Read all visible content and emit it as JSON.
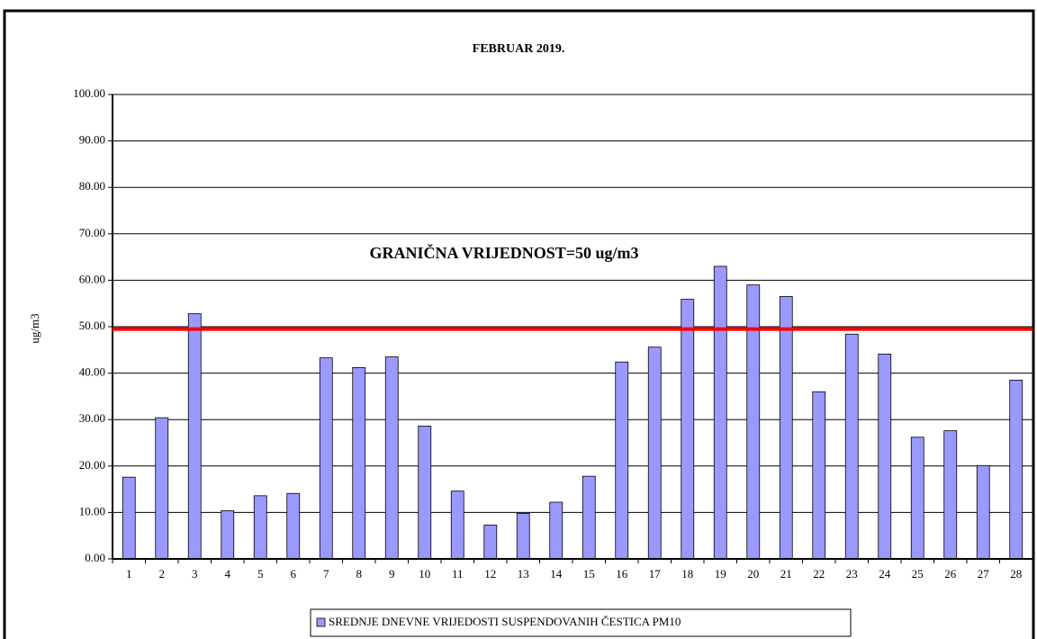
{
  "chart_data": {
    "type": "bar",
    "title": "FEBRUAR 2019.",
    "ylabel": "ug/m3",
    "categories": [
      "1",
      "2",
      "3",
      "4",
      "5",
      "6",
      "7",
      "8",
      "9",
      "10",
      "11",
      "12",
      "13",
      "14",
      "15",
      "16",
      "17",
      "18",
      "19",
      "20",
      "21",
      "22",
      "23",
      "24",
      "25",
      "26",
      "27",
      "28"
    ],
    "series": [
      {
        "name": "SREDNJE DNEVNE VRIJEDOSTI SUSPENDOVANIH ČESTICA PM10",
        "color": "#9999ff",
        "values": [
          17.6,
          30.4,
          52.8,
          10.4,
          13.6,
          14.1,
          43.3,
          41.2,
          43.5,
          28.6,
          14.6,
          7.3,
          9.8,
          12.2,
          17.8,
          42.4,
          45.6,
          55.9,
          63.0,
          59.0,
          56.5,
          36.0,
          48.4,
          44.1,
          26.2,
          27.6,
          20.1,
          38.5
        ]
      }
    ],
    "ylim": [
      0,
      100
    ],
    "yticks": [
      {
        "value": 0,
        "label": "0.00"
      },
      {
        "value": 10,
        "label": "10.00"
      },
      {
        "value": 20,
        "label": "20.00"
      },
      {
        "value": 30,
        "label": "30.00"
      },
      {
        "value": 40,
        "label": "40.00"
      },
      {
        "value": 50,
        "label": "50.00"
      },
      {
        "value": 60,
        "label": "60.00"
      },
      {
        "value": 70,
        "label": "70.00"
      },
      {
        "value": 80,
        "label": "80.00"
      },
      {
        "value": 90,
        "label": "90.00"
      },
      {
        "value": 100,
        "label": "100.00"
      }
    ],
    "grid": true,
    "limit_line": {
      "value": 49.5,
      "color": "#ff0000",
      "label": "GRANIČNA VRIJEDNOST=50 ug/m3"
    }
  }
}
